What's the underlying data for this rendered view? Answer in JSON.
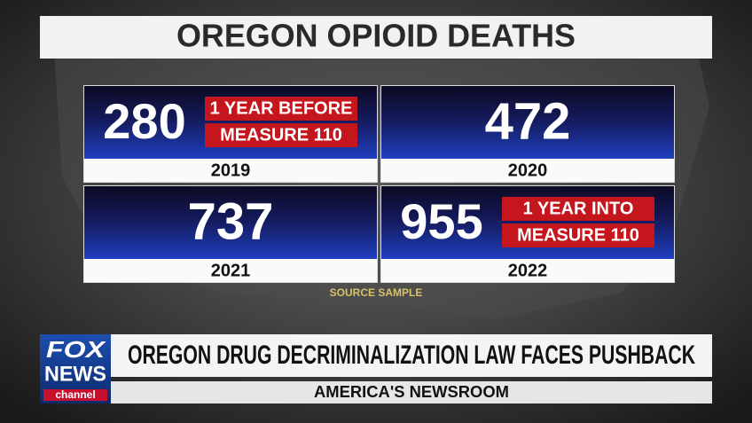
{
  "title": "OREGON OPIOID DEATHS",
  "cards": [
    {
      "value": 280,
      "year": "2019",
      "note": [
        "1 YEAR BEFORE",
        "MEASURE 110"
      ]
    },
    {
      "value": 472,
      "year": "2020"
    },
    {
      "value": 737,
      "year": "2021"
    },
    {
      "value": 955,
      "year": "2022",
      "note": [
        "1 YEAR INTO",
        "MEASURE 110"
      ]
    }
  ],
  "source": "SOURCE SAMPLE",
  "logo": {
    "line1": "FOX",
    "line2": "NEWS",
    "line3": "channel"
  },
  "headline": "OREGON DRUG DECRIMINALIZATION LAW FACES PUSHBACK",
  "show": "AMERICA'S NEWSROOM"
}
